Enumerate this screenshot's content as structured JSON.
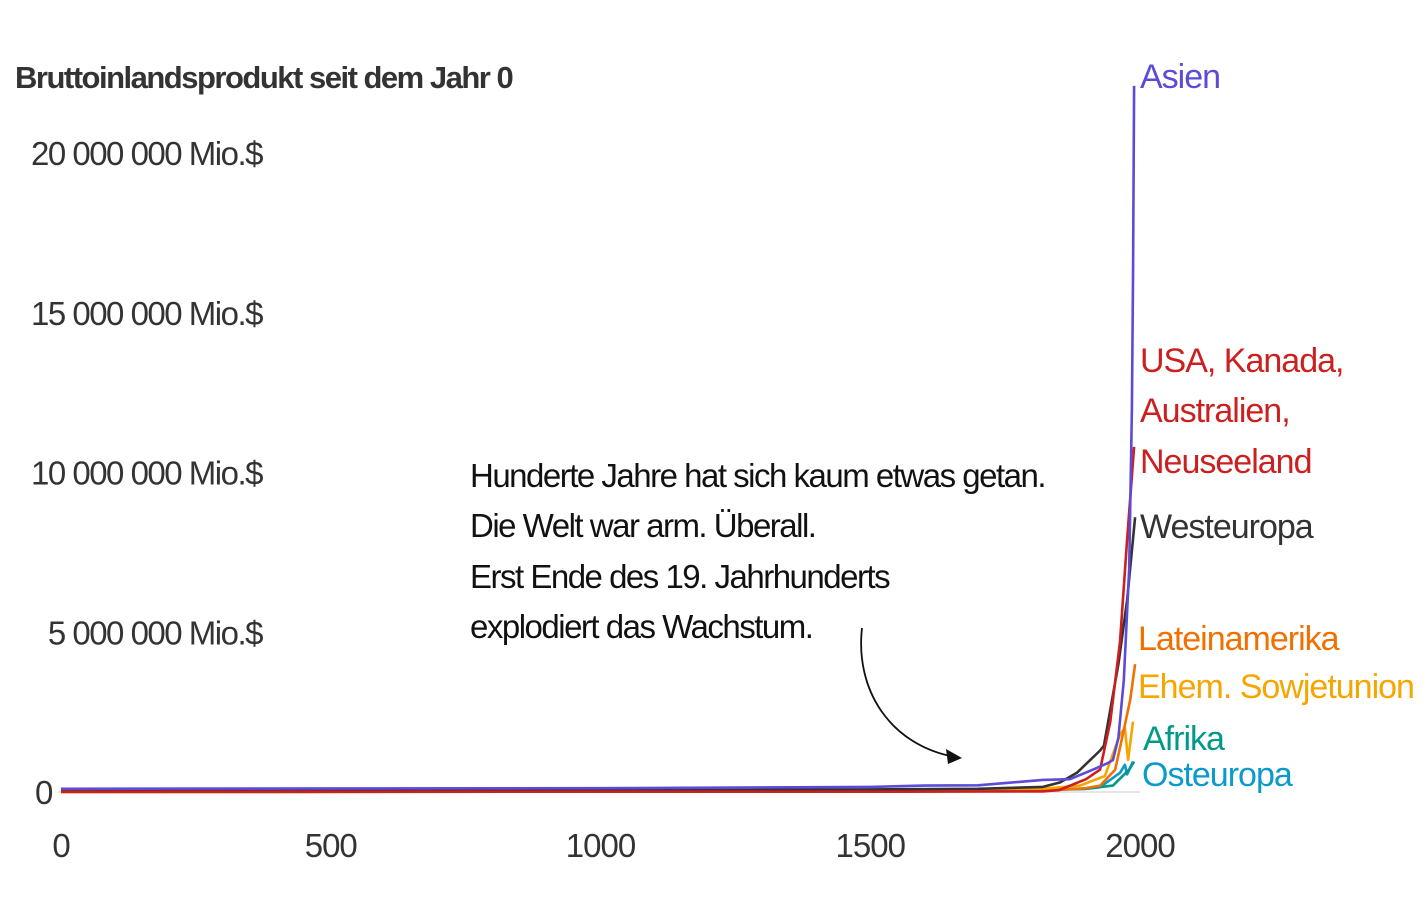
{
  "chart_data": {
    "type": "line",
    "title": "Bruttoinlandsprodukt seit dem Jahr 0",
    "xlabel": "",
    "ylabel": "",
    "xlim": [
      0,
      2000
    ],
    "ylim": [
      0,
      20000000
    ],
    "x_ticks": [
      {
        "value": 0,
        "label": "0"
      },
      {
        "value": 500,
        "label": "500"
      },
      {
        "value": 1000,
        "label": "1000"
      },
      {
        "value": 1500,
        "label": "1500"
      },
      {
        "value": 2000,
        "label": "2000"
      }
    ],
    "y_ticks": [
      {
        "value": 0,
        "label": "0"
      },
      {
        "value": 5000000,
        "label": "5 000 000 Mio.$"
      },
      {
        "value": 10000000,
        "label": "10 000 000 Mio.$"
      },
      {
        "value": 15000000,
        "label": "15 000 000 Mio.$"
      },
      {
        "value": 20000000,
        "label": "20 000 000 Mio.$"
      }
    ],
    "grid": false,
    "annotation": {
      "lines": [
        "Hunderte Jahre hat sich kaum etwas getan.",
        "Die Welt war arm. Überall.",
        "Erst Ende des 19. Jahrhunderts",
        "explodiert das Wachstum."
      ]
    },
    "series": [
      {
        "name": "Osteuropa",
        "label_lines": [
          "Osteuropa"
        ],
        "color": "#0a9acb",
        "points": [
          [
            0,
            0
          ],
          [
            1000,
            10000
          ],
          [
            1500,
            30000
          ],
          [
            1820,
            60000
          ],
          [
            1900,
            100000
          ],
          [
            1926,
            150000
          ],
          [
            1963,
            600000
          ],
          [
            1972,
            850000
          ],
          [
            1976,
            550000
          ],
          [
            1987,
            950000
          ]
        ]
      },
      {
        "name": "Afrika",
        "label_lines": [
          "Afrika"
        ],
        "color": "#00998a",
        "points": [
          [
            0,
            0
          ],
          [
            1000,
            20000
          ],
          [
            1500,
            40000
          ],
          [
            1820,
            70000
          ],
          [
            1900,
            100000
          ],
          [
            1950,
            200000
          ],
          [
            1980,
            700000
          ],
          [
            1989,
            950000
          ]
        ]
      },
      {
        "name": "Ehem. Sowjetunion",
        "label_lines": [
          "Ehem. Sowjetunion"
        ],
        "color": "#f7a600",
        "points": [
          [
            0,
            0
          ],
          [
            1000,
            20000
          ],
          [
            1500,
            50000
          ],
          [
            1820,
            100000
          ],
          [
            1889,
            200000
          ],
          [
            1935,
            500000
          ],
          [
            1963,
            1800000
          ],
          [
            1972,
            2000000
          ],
          [
            1978,
            1000000
          ],
          [
            1987,
            2200000
          ]
        ]
      },
      {
        "name": "Lateinamerika",
        "label_lines": [
          "Lateinamerika"
        ],
        "color": "#f07000",
        "points": [
          [
            0,
            0
          ],
          [
            1000,
            10000
          ],
          [
            1500,
            20000
          ],
          [
            1820,
            30000
          ],
          [
            1900,
            120000
          ],
          [
            1926,
            200000
          ],
          [
            1954,
            700000
          ],
          [
            1972,
            2100000
          ],
          [
            1982,
            2900000
          ],
          [
            1991,
            4000000
          ]
        ]
      },
      {
        "name": "Westeuropa",
        "label_lines": [
          "Westeuropa"
        ],
        "color": "#333333",
        "points": [
          [
            0,
            50000
          ],
          [
            1000,
            50000
          ],
          [
            1500,
            80000
          ],
          [
            1700,
            100000
          ],
          [
            1820,
            160000
          ],
          [
            1852,
            300000
          ],
          [
            1883,
            600000
          ],
          [
            1926,
            1300000
          ],
          [
            1933,
            1450000
          ],
          [
            1960,
            4000000
          ],
          [
            1976,
            6000000
          ],
          [
            1991,
            8600000
          ]
        ]
      },
      {
        "name": "USA, Kanada, Australien, Neuseeland",
        "label_lines": [
          "USA, Kanada,",
          "Australien,",
          "Neuseeland"
        ],
        "color": "#cc1f1f",
        "points": [
          [
            0,
            10000
          ],
          [
            1500,
            10000
          ],
          [
            1820,
            20000
          ],
          [
            1850,
            60000
          ],
          [
            1900,
            400000
          ],
          [
            1926,
            700000
          ],
          [
            1945,
            2200000
          ],
          [
            1963,
            4700000
          ],
          [
            1976,
            7900000
          ],
          [
            1989,
            10800000
          ]
        ]
      },
      {
        "name": "Asien",
        "label_lines": [
          "Asien"
        ],
        "color": "#5b4bd6",
        "points": [
          [
            0,
            100000
          ],
          [
            1000,
            120000
          ],
          [
            1500,
            160000
          ],
          [
            1600,
            200000
          ],
          [
            1700,
            210000
          ],
          [
            1820,
            380000
          ],
          [
            1870,
            400000
          ],
          [
            1913,
            700000
          ],
          [
            1940,
            900000
          ],
          [
            1950,
            1000000
          ],
          [
            1960,
            1700000
          ],
          [
            1970,
            3500000
          ],
          [
            1980,
            7000000
          ],
          [
            1985,
            12000000
          ],
          [
            1987,
            16000000
          ],
          [
            1989,
            22100000
          ]
        ]
      }
    ]
  }
}
